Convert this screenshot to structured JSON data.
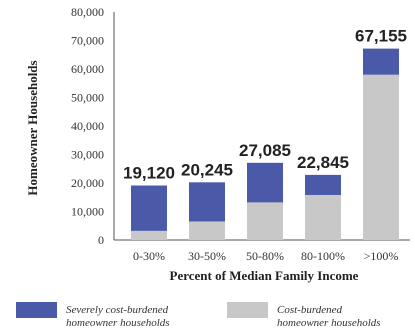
{
  "chart_data": {
    "type": "bar",
    "stacked": true,
    "categories": [
      "0-30%",
      "30-50%",
      "50-80%",
      "80-100%",
      ">100%"
    ],
    "series": [
      {
        "name": "Cost-burdened homeowner households",
        "color": "#c8c8c8",
        "values": [
          3200,
          6500,
          13200,
          15800,
          58000
        ]
      },
      {
        "name": "Severely cost-burdened homeowner households",
        "color": "#4a5aa8",
        "values": [
          15920,
          13745,
          13885,
          7045,
          9155
        ]
      }
    ],
    "totals": [
      "19,120",
      "20,245",
      "27,085",
      "22,845",
      "67,155"
    ],
    "xlabel": "Percent of Median Family Income",
    "ylabel": "Homeowner Households",
    "ylim": [
      0,
      80000
    ],
    "yticks": [
      "0",
      "10,000",
      "20,000",
      "30,000",
      "40,000",
      "50,000",
      "60,000",
      "70,000",
      "80,000"
    ],
    "grid": false,
    "legend_position": "bottom",
    "legend": [
      {
        "label_line1": "Severely cost-burdened",
        "label_line2": "homeowner households",
        "color": "#4a5aa8"
      },
      {
        "label_line1": "Cost-burdened",
        "label_line2": "homeowner households",
        "color": "#c8c8c8"
      }
    ]
  }
}
